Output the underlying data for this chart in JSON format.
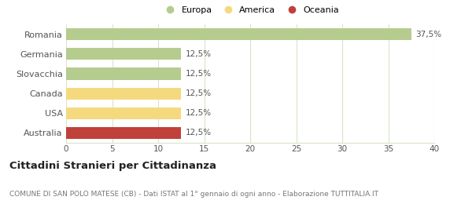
{
  "categories": [
    "Australia",
    "USA",
    "Canada",
    "Slovacchia",
    "Germania",
    "Romania"
  ],
  "values": [
    12.5,
    12.5,
    12.5,
    12.5,
    12.5,
    37.5
  ],
  "bar_colors": [
    "#c0403a",
    "#f5d97e",
    "#f5d97e",
    "#b5cc8e",
    "#b5cc8e",
    "#b5cc8e"
  ],
  "legend_items": [
    {
      "label": "Europa",
      "color": "#b5cc8e"
    },
    {
      "label": "America",
      "color": "#f5d97e"
    },
    {
      "label": "Oceania",
      "color": "#c0403a"
    }
  ],
  "value_labels": [
    "12,5%",
    "12,5%",
    "12,5%",
    "12,5%",
    "12,5%",
    "37,5%"
  ],
  "xlim": [
    0,
    40
  ],
  "xticks": [
    0,
    5,
    10,
    15,
    20,
    25,
    30,
    35,
    40
  ],
  "title": "Cittadini Stranieri per Cittadinanza",
  "subtitle": "COMUNE DI SAN POLO MATESE (CB) - Dati ISTAT al 1° gennaio di ogni anno - Elaborazione TUTTITALIA.IT",
  "title_fontsize": 9.5,
  "subtitle_fontsize": 6.5,
  "background_color": "#ffffff",
  "grid_color": "#d8e4c8",
  "label_color": "#555555",
  "value_text_color": "#555555",
  "bar_height": 0.6
}
